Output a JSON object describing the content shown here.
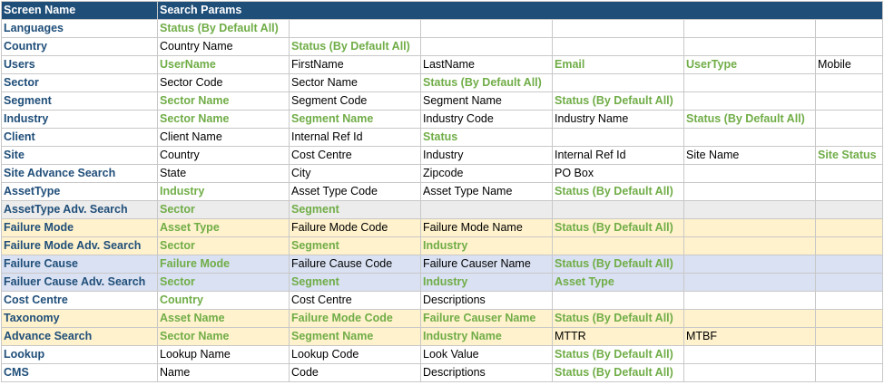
{
  "header": {
    "screen_name": "Screen Name",
    "search_params": "Search Params"
  },
  "colors": {
    "header_bg": "#1f4e79",
    "name_text": "#1f4e79",
    "param_green": "#70ad47",
    "gray": "#ececec",
    "yellow": "#fff2cc",
    "blue": "#d9e1f2"
  },
  "rows": [
    {
      "name": "Languages",
      "shade": "plain",
      "cells": [
        {
          "t": "Status (By Default All)",
          "g": true
        },
        {
          "t": ""
        },
        {
          "t": ""
        },
        {
          "t": ""
        },
        {
          "t": ""
        },
        {
          "t": ""
        }
      ]
    },
    {
      "name": "Country",
      "shade": "plain",
      "cells": [
        {
          "t": "Country Name"
        },
        {
          "t": "Status (By Default All)",
          "g": true
        },
        {
          "t": ""
        },
        {
          "t": ""
        },
        {
          "t": ""
        },
        {
          "t": ""
        }
      ]
    },
    {
      "name": "Users",
      "shade": "plain",
      "cells": [
        {
          "t": "UserName",
          "g": true
        },
        {
          "t": "FirstName"
        },
        {
          "t": "LastName"
        },
        {
          "t": "Email",
          "g": true
        },
        {
          "t": "UserType",
          "g": true
        },
        {
          "t": "Mobile"
        }
      ]
    },
    {
      "name": "Sector",
      "shade": "plain",
      "cells": [
        {
          "t": "Sector Code"
        },
        {
          "t": "Sector Name"
        },
        {
          "t": "Status (By Default All)",
          "g": true
        },
        {
          "t": ""
        },
        {
          "t": ""
        },
        {
          "t": ""
        }
      ]
    },
    {
      "name": "Segment",
      "shade": "plain",
      "cells": [
        {
          "t": "Sector Name",
          "g": true
        },
        {
          "t": "Segment Code"
        },
        {
          "t": "Segment Name"
        },
        {
          "t": "Status (By Default All)",
          "g": true
        },
        {
          "t": ""
        },
        {
          "t": ""
        }
      ]
    },
    {
      "name": "Industry",
      "shade": "plain",
      "cells": [
        {
          "t": "Sector Name",
          "g": true
        },
        {
          "t": "Segment Name",
          "g": true
        },
        {
          "t": "Industry Code"
        },
        {
          "t": "Industry Name"
        },
        {
          "t": "Status (By Default All)",
          "g": true
        },
        {
          "t": ""
        }
      ]
    },
    {
      "name": "Client",
      "shade": "plain",
      "cells": [
        {
          "t": "Client Name"
        },
        {
          "t": "Internal Ref Id"
        },
        {
          "t": "Status",
          "g": true
        },
        {
          "t": ""
        },
        {
          "t": ""
        },
        {
          "t": ""
        }
      ]
    },
    {
      "name": "Site",
      "shade": "plain",
      "cells": [
        {
          "t": "Country"
        },
        {
          "t": "Cost Centre"
        },
        {
          "t": "Industry"
        },
        {
          "t": "Internal Ref Id"
        },
        {
          "t": "Site Name"
        },
        {
          "t": "Site Status",
          "g": true
        }
      ]
    },
    {
      "name": "Site Advance Search",
      "shade": "plain",
      "cells": [
        {
          "t": "State"
        },
        {
          "t": "City"
        },
        {
          "t": "Zipcode"
        },
        {
          "t": "PO Box"
        },
        {
          "t": ""
        },
        {
          "t": ""
        }
      ]
    },
    {
      "name": "AssetType",
      "shade": "plain",
      "cells": [
        {
          "t": "Industry",
          "g": true
        },
        {
          "t": "Asset Type Code"
        },
        {
          "t": "Asset Type Name"
        },
        {
          "t": "Status (By Default All)",
          "g": true
        },
        {
          "t": ""
        },
        {
          "t": ""
        }
      ]
    },
    {
      "name": "AssetType Adv. Search",
      "shade": "gray",
      "cells": [
        {
          "t": "Sector",
          "g": true
        },
        {
          "t": "Segment",
          "g": true
        },
        {
          "t": ""
        },
        {
          "t": ""
        },
        {
          "t": ""
        },
        {
          "t": ""
        }
      ]
    },
    {
      "name": "Failure Mode",
      "shade": "yellow",
      "cells": [
        {
          "t": "Asset Type",
          "g": true
        },
        {
          "t": "Failure Mode Code"
        },
        {
          "t": "Failure Mode Name"
        },
        {
          "t": "Status (By Default All)",
          "g": true
        },
        {
          "t": ""
        },
        {
          "t": ""
        }
      ]
    },
    {
      "name": "Failure Mode Adv. Search",
      "shade": "yellow",
      "cells": [
        {
          "t": "Sector",
          "g": true
        },
        {
          "t": "Segment",
          "g": true
        },
        {
          "t": "Industry",
          "g": true
        },
        {
          "t": ""
        },
        {
          "t": ""
        },
        {
          "t": ""
        }
      ]
    },
    {
      "name": "Failure Cause",
      "shade": "blue",
      "cells": [
        {
          "t": "Failure Mode",
          "g": true
        },
        {
          "t": "Failure Cause Code"
        },
        {
          "t": "Failure Causer Name"
        },
        {
          "t": "Status (By Default All)",
          "g": true
        },
        {
          "t": ""
        },
        {
          "t": ""
        }
      ]
    },
    {
      "name": "Failuer Cause Adv. Search",
      "shade": "blue",
      "cells": [
        {
          "t": "Sector",
          "g": true
        },
        {
          "t": "Segment",
          "g": true
        },
        {
          "t": "Industry",
          "g": true
        },
        {
          "t": "Asset Type",
          "g": true
        },
        {
          "t": ""
        },
        {
          "t": ""
        }
      ]
    },
    {
      "name": "Cost Centre",
      "shade": "plain",
      "cells": [
        {
          "t": "Country",
          "g": true
        },
        {
          "t": "Cost Centre"
        },
        {
          "t": "Descriptions"
        },
        {
          "t": ""
        },
        {
          "t": ""
        },
        {
          "t": ""
        }
      ]
    },
    {
      "name": "Taxonomy",
      "shade": "yellow",
      "cells": [
        {
          "t": "Asset Name",
          "g": true
        },
        {
          "t": "Failure Mode Code",
          "g": true
        },
        {
          "t": "Failure Causer Name",
          "g": true
        },
        {
          "t": "Status (By Default All)",
          "g": true
        },
        {
          "t": ""
        },
        {
          "t": ""
        }
      ]
    },
    {
      "name": "Advance Search",
      "shade": "yellow",
      "cells": [
        {
          "t": "Sector Name",
          "g": true
        },
        {
          "t": "Segment Name",
          "g": true
        },
        {
          "t": "Industry Name",
          "g": true
        },
        {
          "t": "MTTR"
        },
        {
          "t": "MTBF"
        },
        {
          "t": ""
        }
      ]
    },
    {
      "name": "Lookup",
      "shade": "plain",
      "cells": [
        {
          "t": "Lookup Name"
        },
        {
          "t": "Lookup Code"
        },
        {
          "t": "Look Value"
        },
        {
          "t": "Status (By Default All)",
          "g": true
        },
        {
          "t": ""
        },
        {
          "t": ""
        }
      ]
    },
    {
      "name": "CMS",
      "shade": "plain",
      "cells": [
        {
          "t": "Name"
        },
        {
          "t": "Code"
        },
        {
          "t": "Descriptions"
        },
        {
          "t": "Status (By Default All)",
          "g": true
        },
        {
          "t": ""
        },
        {
          "t": ""
        }
      ]
    }
  ]
}
